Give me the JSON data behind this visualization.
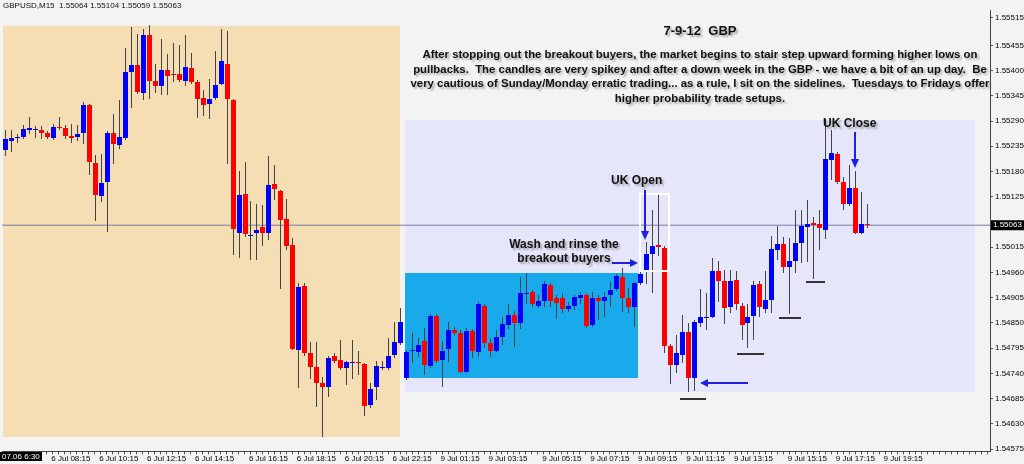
{
  "chart_data": {
    "type": "candlestick",
    "title": "7-9-12  GBP",
    "subtitle": "After stopping out the breakout buyers, the market begins to stair step upward forming higher lows on pullbacks.  The candles are very spikey and after a down week in the GBP - we have a bit of an up day.  Be very cautious of Sunday/Monday erratic trading... as a rule, I sit on the sidelines.  Tuesdays to Fridays offer higher probability trade setups.",
    "annotations": [
      "GBPUSD,M15  1.55064 1.55104 1.55059 1.55063",
      "07.06 6:30",
      "Wash and rinse the breakout buyers",
      "UK Open",
      "UK Close"
    ],
    "categories": [
      null,
      null,
      null,
      null,
      null,
      null,
      null,
      null,
      null,
      null,
      null,
      "6 Jul 08:15",
      null,
      null,
      null,
      null,
      null,
      null,
      null,
      "6 Jul 10:15",
      null,
      null,
      null,
      null,
      null,
      null,
      null,
      "6 Jul 12:15",
      null,
      null,
      null,
      null,
      null,
      null,
      null,
      "6 Jul 14:15",
      null,
      null,
      null,
      null,
      null,
      null,
      null,
      null,
      "6 Jul 16:15",
      null,
      null,
      null,
      null,
      null,
      null,
      null,
      "6 Jul 18:15",
      null,
      null,
      null,
      null,
      null,
      null,
      null,
      "6 Jul 20:15",
      null,
      null,
      null,
      null,
      null,
      null,
      null,
      "6 Jul 22:15",
      null,
      null,
      null,
      null,
      null,
      null,
      null,
      "9 Jul 01:15",
      null,
      null,
      null,
      null,
      null,
      null,
      null,
      "9 Jul 03:15",
      null,
      null,
      null,
      null,
      null,
      null,
      null,
      null,
      "9 Jul 05:15",
      null,
      null,
      null,
      null,
      null,
      null,
      null,
      "9 Jul 07:15",
      null,
      null,
      null,
      null,
      null,
      null,
      null,
      "9 Jul 09:15",
      null,
      null,
      null,
      null,
      null,
      null,
      null,
      "9 Jul 11:15",
      null,
      null,
      null,
      null,
      null,
      null,
      null,
      "9 Jul 13:15",
      null,
      null,
      null,
      null,
      null,
      null,
      null,
      null,
      "9 Jul 15:15",
      null,
      null,
      null,
      null,
      null,
      null,
      null,
      "9 Jul 17:15",
      null,
      null,
      null,
      null,
      null,
      null,
      null,
      "9 Jul 19:15",
      null,
      null,
      null,
      null,
      null,
      null,
      null,
      null,
      null,
      null,
      null,
      null,
      null,
      null
    ],
    "ohlc": [
      [
        1.55227,
        1.55268,
        1.55217,
        1.55251
      ],
      [
        1.55247,
        1.55269,
        1.55225,
        1.55252
      ],
      [
        1.55252,
        1.55259,
        1.55244,
        1.55256
      ],
      [
        1.55256,
        1.55279,
        1.55254,
        1.55273
      ],
      [
        1.55271,
        1.55296,
        1.55264,
        1.55274
      ],
      [
        1.5527,
        1.55277,
        1.55256,
        1.55272
      ],
      [
        1.5527,
        1.55277,
        1.55253,
        1.55264
      ],
      [
        1.55264,
        1.55267,
        1.55252,
        1.55256
      ],
      [
        1.55252,
        1.55281,
        1.5525,
        1.55277
      ],
      [
        1.55277,
        1.55297,
        1.55272,
        1.55274
      ],
      [
        1.55274,
        1.55279,
        1.55253,
        1.55257
      ],
      [
        1.55257,
        1.55281,
        1.55244,
        1.55252
      ],
      [
        1.55255,
        1.5528,
        1.55248,
        1.55261
      ],
      [
        1.55264,
        1.5533,
        1.55243,
        1.55325
      ],
      [
        1.55324,
        1.55324,
        1.55174,
        1.55201
      ],
      [
        1.55199,
        1.55214,
        1.55074,
        1.55128
      ],
      [
        1.55127,
        1.55216,
        1.55116,
        1.55156
      ],
      [
        1.55157,
        1.55267,
        1.5505,
        1.55264
      ],
      [
        1.55264,
        1.55304,
        1.55198,
        1.55241
      ],
      [
        1.55237,
        1.55333,
        1.55231,
        1.55256
      ],
      [
        1.55254,
        1.55446,
        1.5525,
        1.55397
      ],
      [
        1.55397,
        1.55493,
        1.5532,
        1.55412
      ],
      [
        1.55412,
        1.55478,
        1.55351,
        1.55354
      ],
      [
        1.55351,
        1.55488,
        1.55337,
        1.55478
      ],
      [
        1.55478,
        1.55498,
        1.55341,
        1.55378
      ],
      [
        1.55378,
        1.55413,
        1.55353,
        1.55366
      ],
      [
        1.55366,
        1.55466,
        1.5535,
        1.55402
      ],
      [
        1.55402,
        1.55433,
        1.5535,
        1.55389
      ],
      [
        1.55393,
        1.55457,
        1.55377,
        1.5539
      ],
      [
        1.55393,
        1.55454,
        1.55377,
        1.55379
      ],
      [
        1.55377,
        1.55475,
        1.55369,
        1.55407
      ],
      [
        1.55406,
        1.55437,
        1.55373,
        1.55375
      ],
      [
        1.55375,
        1.55377,
        1.55299,
        1.55338
      ],
      [
        1.55341,
        1.55355,
        1.55303,
        1.55325
      ],
      [
        1.55327,
        1.5538,
        1.55296,
        1.55339
      ],
      [
        1.55341,
        1.55441,
        1.55337,
        1.55368
      ],
      [
        1.55371,
        1.55489,
        1.5537,
        1.5542
      ],
      [
        1.55415,
        1.55483,
        1.55199,
        1.55338
      ],
      [
        1.55335,
        1.55335,
        1.55,
        1.55054
      ],
      [
        1.55045,
        1.55179,
        1.54994,
        1.55128
      ],
      [
        1.5513,
        1.55199,
        1.5504,
        1.55043
      ],
      [
        1.5504,
        1.55114,
        1.54989,
        1.55042
      ],
      [
        1.55045,
        1.55108,
        1.54989,
        1.55052
      ],
      [
        1.55058,
        1.55105,
        1.5502,
        1.55045
      ],
      [
        1.55047,
        1.55212,
        1.55032,
        1.5515
      ],
      [
        1.55152,
        1.55192,
        1.55121,
        1.55141
      ],
      [
        1.55137,
        1.55137,
        1.54927,
        1.55074
      ],
      [
        1.55076,
        1.55117,
        1.55011,
        1.55018
      ],
      [
        1.55019,
        1.55034,
        1.54793,
        1.54794
      ],
      [
        1.54792,
        1.54934,
        1.54711,
        1.54929
      ],
      [
        1.54931,
        1.54934,
        1.5478,
        1.54784
      ],
      [
        1.54784,
        1.54807,
        1.54731,
        1.54753
      ],
      [
        1.54755,
        1.54807,
        1.5467,
        1.5472
      ],
      [
        1.54718,
        1.54731,
        1.54604,
        1.54711
      ],
      [
        1.54711,
        1.54775,
        1.54691,
        1.54773
      ],
      [
        1.54777,
        1.54782,
        1.54764,
        1.54768
      ],
      [
        1.54769,
        1.54811,
        1.54749,
        1.54751
      ],
      [
        1.54751,
        1.54765,
        1.54717,
        1.54764
      ],
      [
        1.54763,
        1.54811,
        1.54731,
        1.54764
      ],
      [
        1.54764,
        1.54786,
        1.54739,
        1.54763
      ],
      [
        1.5476,
        1.5476,
        1.5465,
        1.5467
      ],
      [
        1.54671,
        1.54717,
        1.54666,
        1.54707
      ],
      [
        1.5471,
        1.54764,
        1.54684,
        1.54757
      ],
      [
        1.54752,
        1.54764,
        1.54749,
        1.54754
      ],
      [
        1.54752,
        1.54816,
        1.54749,
        1.54778
      ],
      [
        1.5478,
        1.5485,
        1.54775,
        1.54809
      ],
      [
        1.54807,
        1.5488,
        1.54804,
        1.54853
      ],
      [
        1.54729,
        1.54789,
        1.54728,
        1.54786
      ],
      [
        1.54789,
        1.54826,
        1.54765,
        1.54791
      ],
      [
        1.54787,
        1.54816,
        1.54778,
        1.54802
      ],
      [
        1.54811,
        1.54836,
        1.54739,
        1.54759
      ],
      [
        1.54757,
        1.54868,
        1.54755,
        1.54865
      ],
      [
        1.54865,
        1.54867,
        1.54764,
        1.54768
      ],
      [
        1.5477,
        1.54809,
        1.54713,
        1.54789
      ],
      [
        1.54793,
        1.54849,
        1.54768,
        1.54834
      ],
      [
        1.54834,
        1.54839,
        1.54824,
        1.54828
      ],
      [
        1.54828,
        1.54833,
        1.54743,
        1.54744
      ],
      [
        1.54744,
        1.54836,
        1.54742,
        1.54833
      ],
      [
        1.54833,
        1.54835,
        1.54775,
        1.54788
      ],
      [
        1.54786,
        1.54893,
        1.54778,
        1.54891
      ],
      [
        1.54887,
        1.54889,
        1.54797,
        1.54806
      ],
      [
        1.54806,
        1.54815,
        1.54778,
        1.54789
      ],
      [
        1.54789,
        1.54833,
        1.54788,
        1.54819
      ],
      [
        1.54819,
        1.5486,
        1.54804,
        1.54847
      ],
      [
        1.54846,
        1.54889,
        1.5484,
        1.54867
      ],
      [
        1.54867,
        1.54873,
        1.548,
        1.5485
      ],
      [
        1.5485,
        1.54947,
        1.5484,
        1.54916
      ],
      [
        1.54915,
        1.54956,
        1.54894,
        1.54916
      ],
      [
        1.54918,
        1.5492,
        1.54887,
        1.54891
      ],
      [
        1.54887,
        1.54909,
        1.54884,
        1.54897
      ],
      [
        1.54897,
        1.54939,
        1.54887,
        1.54934
      ],
      [
        1.54933,
        1.54934,
        1.54887,
        1.54898
      ],
      [
        1.54904,
        1.54909,
        1.5486,
        1.54894
      ],
      [
        1.54904,
        1.54913,
        1.54874,
        1.5488
      ],
      [
        1.5488,
        1.54894,
        1.54875,
        1.54886
      ],
      [
        1.54886,
        1.54909,
        1.5488,
        1.54907
      ],
      [
        1.54905,
        1.54916,
        1.54894,
        1.5491
      ],
      [
        1.5491,
        1.54913,
        1.54842,
        1.54844
      ],
      [
        1.54846,
        1.54916,
        1.54844,
        1.54904
      ],
      [
        1.54904,
        1.54909,
        1.54858,
        1.54898
      ],
      [
        1.54898,
        1.54916,
        1.54865,
        1.54906
      ],
      [
        1.5491,
        1.54937,
        1.54887,
        1.54922
      ],
      [
        1.54924,
        1.54954,
        1.54922,
        1.54953
      ],
      [
        1.54951,
        1.54967,
        1.54876,
        1.54905
      ],
      [
        1.54904,
        1.54924,
        1.54874,
        1.54884
      ],
      [
        1.54884,
        1.54938,
        1.54844,
        1.54937
      ],
      [
        1.54937,
        1.5496,
        1.54934,
        1.54956
      ],
      [
        1.54966,
        1.55025,
        1.54938,
        1.55
      ],
      [
        1.55,
        1.55094,
        1.54918,
        1.55018
      ],
      [
        1.55019,
        1.55128,
        1.54997,
        1.55016
      ],
      [
        1.55014,
        1.55016,
        1.54786,
        1.548
      ],
      [
        1.54799,
        1.54802,
        1.5472,
        1.54758
      ],
      [
        1.54759,
        1.54822,
        1.54742,
        1.54784
      ],
      [
        1.5478,
        1.54865,
        1.54764,
        1.54831
      ],
      [
        1.54831,
        1.54847,
        1.54702,
        1.54731
      ],
      [
        1.54731,
        1.54855,
        1.54704,
        1.54851
      ],
      [
        1.5485,
        1.54922,
        1.54844,
        1.54862
      ],
      [
        1.54862,
        1.54913,
        1.54836,
        1.54863
      ],
      [
        1.54864,
        1.5499,
        1.54862,
        1.54964
      ],
      [
        1.54963,
        1.54982,
        1.54898,
        1.54942
      ],
      [
        1.54942,
        1.54963,
        1.5485,
        1.54882
      ],
      [
        1.54884,
        1.54963,
        1.54873,
        1.54942
      ],
      [
        1.54943,
        1.5496,
        1.5488,
        1.54891
      ],
      [
        1.54886,
        1.54891,
        1.54816,
        1.54846
      ],
      [
        1.54849,
        1.54889,
        1.54797,
        1.54863
      ],
      [
        1.54865,
        1.54939,
        1.54815,
        1.54933
      ],
      [
        1.54934,
        1.54939,
        1.54865,
        1.54884
      ],
      [
        1.54881,
        1.54961,
        1.54874,
        1.549
      ],
      [
        1.549,
        1.55038,
        1.54874,
        1.55011
      ],
      [
        1.55009,
        1.55058,
        1.5499,
        1.55021
      ],
      [
        1.55021,
        1.55036,
        1.5496,
        1.54971
      ],
      [
        1.54971,
        1.55032,
        1.54871,
        1.54984
      ],
      [
        1.54984,
        1.55095,
        1.5496,
        1.55025
      ],
      [
        1.55024,
        1.55095,
        1.54983,
        1.55061
      ],
      [
        1.55059,
        1.55116,
        1.54985,
        1.55065
      ],
      [
        1.55067,
        1.55079,
        1.54949,
        1.55063
      ],
      [
        1.55065,
        1.55094,
        1.55011,
        1.55056
      ],
      [
        1.55053,
        1.55293,
        1.55036,
        1.55208
      ],
      [
        1.55205,
        1.55268,
        1.55163,
        1.55221
      ],
      [
        1.55219,
        1.55221,
        1.55155,
        1.55157
      ],
      [
        1.55157,
        1.55166,
        1.55099,
        1.5511
      ],
      [
        1.5511,
        1.55192,
        1.55106,
        1.55145
      ],
      [
        1.55143,
        1.55179,
        1.55045,
        1.55047
      ],
      [
        1.55047,
        1.55134,
        1.55045,
        1.55065
      ],
      [
        1.55065,
        1.55106,
        1.5506,
        1.55063
      ],
      null,
      null,
      null,
      null,
      null,
      null,
      null,
      null,
      null,
      null,
      null,
      null,
      null,
      null,
      null,
      null,
      null,
      null,
      null,
      null
    ],
    "colors": [
      "#0000ff",
      "#0000ff",
      "#0000ff",
      "#0000ff",
      "#0000ff",
      "#0000ff",
      "#ff0000",
      "#ff0000",
      "#0000ff",
      "#ff0000",
      "#ff0000",
      "#ff0000",
      "#0000ff",
      "#0000ff",
      "#ff0000",
      "#ff0000",
      "#0000ff",
      "#0000ff",
      "#ff0000",
      "#0000ff",
      "#0000ff",
      "#0000ff",
      "#ff0000",
      "#0000ff",
      "#ff0000",
      "#ff0000",
      "#0000ff",
      "#ff0000",
      "#ff0000",
      "#ff0000",
      "#0000ff",
      "#ff0000",
      "#ff0000",
      "#ff0000",
      "#0000ff",
      "#0000ff",
      "#0000ff",
      "#ff0000",
      "#ff0000",
      "#0000ff",
      "#ff0000",
      "#0000ff",
      "#0000ff",
      "#ff0000",
      "#0000ff",
      "#ff0000",
      "#ff0000",
      "#ff0000",
      "#ff0000",
      "#0000ff",
      "#ff0000",
      "#ff0000",
      "#ff0000",
      "#ff0000",
      "#0000ff",
      "#ff0000",
      "#ff0000",
      "#0000ff",
      "#0000ff",
      "#ff0000",
      "#ff0000",
      "#0000ff",
      "#0000ff",
      "#0000ff",
      "#0000ff",
      "#0000ff",
      "#0000ff",
      "#0000ff",
      "#0000ff",
      "#0000ff",
      "#ff0000",
      "#0000ff",
      "#ff0000",
      "#0000ff",
      "#0000ff",
      "#ff0000",
      "#ff0000",
      "#0000ff",
      "#ff0000",
      "#0000ff",
      "#ff0000",
      "#ff0000",
      "#0000ff",
      "#0000ff",
      "#0000ff",
      "#ff0000",
      "#0000ff",
      "#0000ff",
      "#ff0000",
      "#0000ff",
      "#0000ff",
      "#ff0000",
      "#ff0000",
      "#ff0000",
      "#0000ff",
      "#0000ff",
      "#0000ff",
      "#ff0000",
      "#0000ff",
      "#ff0000",
      "#0000ff",
      "#0000ff",
      "#0000ff",
      "#ff0000",
      "#ff0000",
      "#0000ff",
      "#0000ff",
      "#0000ff",
      "#0000ff",
      "#ff0000",
      "#ff0000",
      "#ff0000",
      "#0000ff",
      "#0000ff",
      "#ff0000",
      "#0000ff",
      "#0000ff",
      "#0000ff",
      "#0000ff",
      "#ff0000",
      "#ff0000",
      "#0000ff",
      "#ff0000",
      "#ff0000",
      "#0000ff",
      "#0000ff",
      "#ff0000",
      "#0000ff",
      "#0000ff",
      "#0000ff",
      "#ff0000",
      "#0000ff",
      "#0000ff",
      "#0000ff",
      "#0000ff",
      "#ff0000",
      "#ff0000",
      "#0000ff",
      "#0000ff",
      "#ff0000",
      "#ff0000",
      "#0000ff",
      "#ff0000",
      "#0000ff",
      "#ff0000",
      null,
      null,
      null,
      null,
      null,
      null,
      null,
      null,
      null,
      null,
      null,
      null,
      null,
      null,
      null,
      null,
      null,
      null,
      null,
      null
    ],
    "ylim": [
      1.5457,
      1.55532
    ],
    "yticks": [
      1.54575,
      {
        "value": 1.5463,
        "label": "1.54630"
      },
      1.54685,
      {
        "value": 1.5474,
        "label": "1.54740"
      },
      1.54795,
      {
        "value": 1.5485,
        "label": "1.54850"
      },
      1.54905,
      {
        "value": 1.5496,
        "label": "1.54960"
      },
      1.55015,
      1.55125,
      {
        "value": 1.5518,
        "label": "1.55180"
      },
      1.55235,
      {
        "value": 1.5529,
        "label": "1.55290"
      },
      1.55345,
      {
        "value": 1.554,
        "label": "1.55400"
      },
      1.55455,
      1.55515
    ],
    "ref_lines": [
      {
        "axis": "y",
        "value": 1.55063,
        "label": "1.55063",
        "color": "#7a7aa8"
      }
    ]
  }
}
